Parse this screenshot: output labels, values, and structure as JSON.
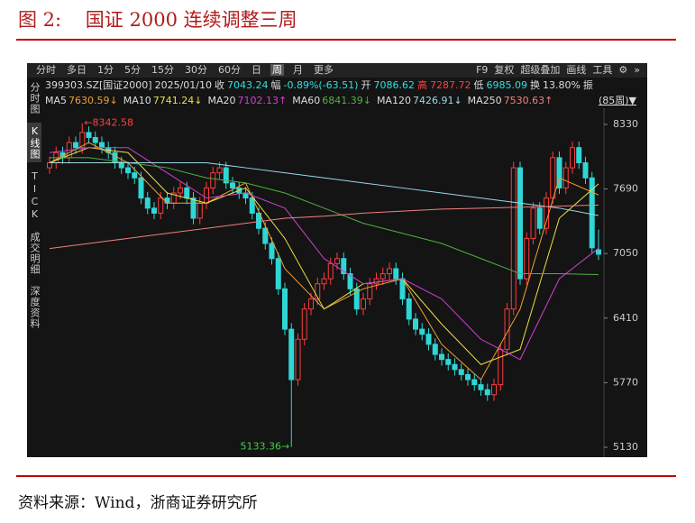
{
  "header": {
    "title": "图 2:    国证 2000 连续调整三周"
  },
  "footer": {
    "source": "资料来源：Wind，浙商证券研究所"
  },
  "toolbar": {
    "left": [
      "分时",
      "多日",
      "1分",
      "5分",
      "15分",
      "30分",
      "60分",
      "日",
      "周",
      "月",
      "更多"
    ],
    "active_index": 8,
    "right": [
      "F9",
      "复权",
      "超级叠加",
      "画线",
      "工具",
      "⚙",
      "»"
    ]
  },
  "side_tabs": {
    "items": [
      "分时图",
      "K线图",
      "TICK",
      "成交明细",
      "深度资料"
    ],
    "active_index": 1
  },
  "info_row": [
    {
      "text": "399303.SZ[国证2000]",
      "color": "#dddddd"
    },
    {
      "text": "2025/01/10",
      "color": "#dddddd"
    },
    {
      "text": "收",
      "color": "#dddddd"
    },
    {
      "text": "7043.24",
      "color": "#2ee0e0"
    },
    {
      "text": "幅",
      "color": "#dddddd"
    },
    {
      "text": "-0.89%(-63.51)",
      "color": "#2ee0e0"
    },
    {
      "text": "开",
      "color": "#dddddd"
    },
    {
      "text": "7086.62",
      "color": "#2ee0e0"
    },
    {
      "text": "高",
      "color": "#ff4040"
    },
    {
      "text": "7287.72",
      "color": "#ff4040"
    },
    {
      "text": "低",
      "color": "#dddddd"
    },
    {
      "text": "6985.09",
      "color": "#2ee0e0"
    },
    {
      "text": "换",
      "color": "#dddddd"
    },
    {
      "text": "13.80%",
      "color": "#dddddd"
    },
    {
      "text": "振",
      "color": "#dddddd"
    }
  ],
  "period_label": "(85周)▼",
  "chart_data": {
    "type": "candlestick",
    "open": [
      7900,
      7950,
      8050,
      8000,
      8150,
      8100,
      8250,
      8200,
      8150,
      8100,
      8050,
      7950,
      7900,
      7850,
      7800,
      7600,
      7500,
      7450,
      7600,
      7550,
      7650,
      7700,
      7600,
      7400,
      7550,
      7700,
      7850,
      7900,
      7750,
      7700,
      7650,
      7600,
      7450,
      7300,
      7150,
      7000,
      6700,
      6300,
      5800,
      6200,
      6500,
      6600,
      6750,
      6800,
      6950,
      7000,
      6850,
      6700,
      6500,
      6600,
      6750,
      6800,
      6850,
      6900,
      6800,
      6600,
      6400,
      6300,
      6250,
      6150,
      6050,
      6000,
      5950,
      5900,
      5850,
      5800,
      5750,
      5700,
      5650,
      5750,
      6100,
      6500,
      7900,
      6800,
      7200,
      7500,
      7300,
      7600,
      8000,
      7700,
      7900,
      8100,
      7950,
      7800,
      7086.62
    ],
    "high": [
      8010,
      8110,
      8110,
      8210,
      8210,
      8342.58,
      8310,
      8260,
      8210,
      8160,
      8110,
      8010,
      7960,
      7910,
      7860,
      7660,
      7560,
      7660,
      7660,
      7710,
      7760,
      7760,
      7660,
      7610,
      7760,
      7910,
      7960,
      7960,
      7810,
      7760,
      7710,
      7660,
      7510,
      7360,
      7210,
      7060,
      6760,
      6360,
      6260,
      6560,
      6660,
      6810,
      6860,
      7010,
      7060,
      7060,
      6910,
      6760,
      6660,
      6810,
      6860,
      6910,
      6960,
      6960,
      6860,
      6660,
      6460,
      6360,
      6310,
      6210,
      6110,
      6060,
      6010,
      5960,
      5910,
      5860,
      5810,
      5760,
      5810,
      6160,
      6560,
      7960,
      7960,
      7260,
      7560,
      7560,
      7660,
      8060,
      8060,
      7960,
      8160,
      8160,
      8010,
      7860,
      7287.72
    ],
    "low": [
      7840,
      7890,
      7940,
      7940,
      8040,
      8040,
      8140,
      8090,
      8040,
      7990,
      7890,
      7840,
      7790,
      7740,
      7540,
      7440,
      7390,
      7390,
      7490,
      7490,
      7590,
      7540,
      7340,
      7340,
      7490,
      7640,
      7790,
      7690,
      7640,
      7590,
      7540,
      7390,
      7240,
      7090,
      6940,
      6640,
      6240,
      5133.36,
      5740,
      6140,
      6440,
      6540,
      6690,
      6740,
      6890,
      6790,
      6640,
      6440,
      6440,
      6540,
      6690,
      6740,
      6790,
      6740,
      6540,
      6340,
      6240,
      6190,
      6090,
      5990,
      5940,
      5890,
      5840,
      5790,
      5740,
      5690,
      5640,
      5590,
      5590,
      5690,
      6040,
      6440,
      6740,
      6740,
      7140,
      7240,
      7240,
      7540,
      7640,
      7640,
      7840,
      7890,
      7740,
      7046.75,
      6985.09
    ],
    "close": [
      7950,
      8050,
      8000,
      8150,
      8100,
      8250,
      8200,
      8150,
      8100,
      8050,
      7950,
      7900,
      7850,
      7800,
      7600,
      7500,
      7450,
      7600,
      7550,
      7650,
      7700,
      7600,
      7400,
      7550,
      7700,
      7850,
      7900,
      7750,
      7700,
      7650,
      7600,
      7450,
      7300,
      7150,
      7000,
      6700,
      6300,
      5800,
      6200,
      6500,
      6600,
      6750,
      6800,
      6950,
      7000,
      6850,
      6700,
      6500,
      6600,
      6750,
      6800,
      6850,
      6900,
      6800,
      6600,
      6400,
      6300,
      6250,
      6150,
      6050,
      6000,
      5950,
      5900,
      5850,
      5800,
      5750,
      5700,
      5650,
      5750,
      6100,
      6500,
      7900,
      6800,
      7200,
      7500,
      7300,
      7600,
      8000,
      7700,
      7900,
      8100,
      7950,
      7800,
      7106.75,
      7043.24
    ],
    "up_color": "#ff3b3b",
    "down_color": "#2fd6d6",
    "series": [
      {
        "name": "MA5",
        "label": "7630.59↓",
        "color": "#f0a030",
        "x": [
          0,
          6,
          12,
          18,
          24,
          30,
          36,
          42,
          48,
          54,
          60,
          66,
          72,
          78,
          84
        ],
        "values": [
          7950,
          8150,
          7950,
          7550,
          7550,
          7750,
          6900,
          6500,
          6700,
          6800,
          6150,
          5800,
          6500,
          7800,
          7630.59
        ]
      },
      {
        "name": "MA10",
        "label": "7741.24↓",
        "color": "#e8e040",
        "x": [
          0,
          6,
          12,
          18,
          24,
          30,
          36,
          42,
          48,
          54,
          60,
          66,
          72,
          78,
          84
        ],
        "values": [
          7950,
          8100,
          8050,
          7650,
          7550,
          7700,
          7200,
          6500,
          6750,
          6800,
          6350,
          5950,
          6100,
          7400,
          7741.24
        ]
      },
      {
        "name": "MA20",
        "label": "7102.13↑",
        "color": "#d040d0",
        "x": [
          0,
          6,
          12,
          18,
          24,
          30,
          36,
          42,
          48,
          54,
          60,
          66,
          72,
          78,
          84
        ],
        "values": [
          8050,
          8100,
          8100,
          7850,
          7600,
          7650,
          7500,
          7000,
          6750,
          6800,
          6600,
          6200,
          6000,
          6800,
          7102.13
        ]
      },
      {
        "name": "MA60",
        "label": "6841.39↓",
        "color": "#50b040",
        "x": [
          0,
          6,
          12,
          18,
          24,
          30,
          36,
          42,
          48,
          54,
          60,
          66,
          72,
          78,
          84
        ],
        "values": [
          8000,
          8000,
          7950,
          7900,
          7800,
          7750,
          7650,
          7500,
          7350,
          7250,
          7150,
          7000,
          6850,
          6850,
          6841.39
        ]
      },
      {
        "name": "MA120",
        "label": "7426.91↓",
        "color": "#9ad8e8",
        "x": [
          0,
          6,
          12,
          18,
          24,
          30,
          36,
          42,
          48,
          54,
          60,
          66,
          72,
          78,
          84
        ],
        "values": [
          7950,
          7950,
          7950,
          7950,
          7950,
          7900,
          7850,
          7800,
          7750,
          7700,
          7650,
          7600,
          7550,
          7500,
          7426.91
        ]
      },
      {
        "name": "MA250",
        "label": "7530.63↑",
        "color": "#f08080",
        "x": [
          0,
          6,
          12,
          18,
          24,
          30,
          36,
          42,
          48,
          54,
          60,
          66,
          72,
          78,
          84
        ],
        "values": [
          7100,
          7150,
          7200,
          7250,
          7300,
          7350,
          7400,
          7420,
          7450,
          7470,
          7490,
          7500,
          7510,
          7520,
          7530.63
        ]
      }
    ],
    "annotations": [
      {
        "text": "←8342.58",
        "x": 5,
        "y": 8342.58,
        "color": "#ff4040",
        "anchor": "start"
      },
      {
        "text": "5133.36→",
        "x": 37,
        "y": 5133.36,
        "color": "#40d040",
        "anchor": "end"
      }
    ],
    "ylim": [
      5094,
      8419
    ],
    "yticks": [
      5130,
      5770,
      6410,
      7050,
      7690,
      8330
    ]
  }
}
